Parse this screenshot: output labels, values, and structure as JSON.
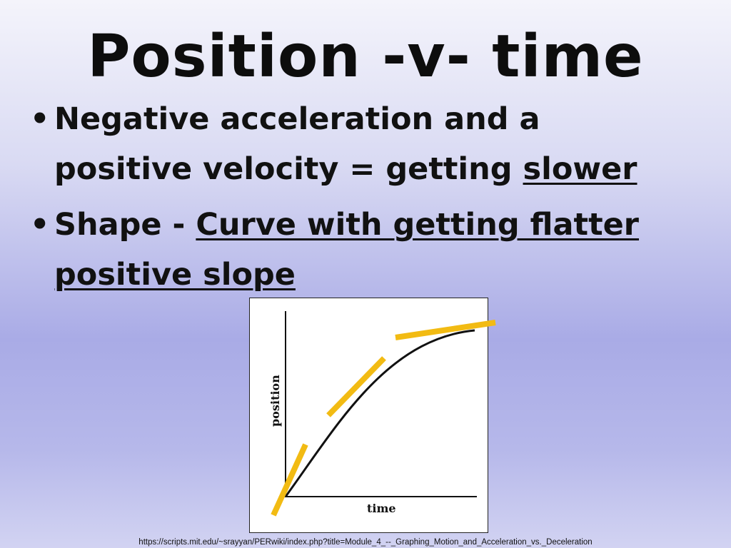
{
  "slide": {
    "title": "Position -v- time",
    "bullets": [
      {
        "line1": "Negative acceleration and a",
        "line2_plain": "positive velocity = getting ",
        "line2_underlined": "slower"
      },
      {
        "plain": "Shape - ",
        "underlined_line1": "Curve with getting flatter",
        "underlined_line2": "positive slope"
      }
    ],
    "bullet_symbol": "•",
    "source": "https://scripts.mit.edu/~srayyan/PERwiki/index.php?title=Module_4_--_Graphing_Motion_and_Acceleration_vs._Deceleration"
  },
  "graph": {
    "ylabel": "position",
    "xlabel": "time",
    "curve_color": "#111111",
    "tangent_color": "#f2bb13"
  }
}
